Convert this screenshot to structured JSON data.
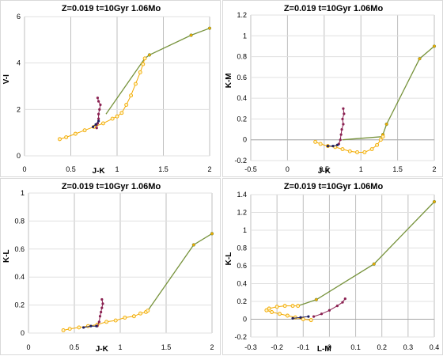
{
  "chart_data": [
    {
      "type": "scatter",
      "title": "Z=0.019  t=10Gyr  1.06Mo",
      "xlabel": "J-K",
      "ylabel": "V-I",
      "xlim": [
        0,
        2
      ],
      "ylim": [
        0,
        6
      ],
      "xticks": [
        "0",
        "0.5",
        "1",
        "1.5",
        "2"
      ],
      "yticks": [
        "0",
        "2",
        "4",
        "6"
      ],
      "grid": true,
      "series": [
        {
          "style": "line-markers",
          "color": "#77933c",
          "x": [
            1.3,
            1.35,
            1.8,
            2.0
          ],
          "y": [
            4.2,
            4.35,
            5.2,
            5.5
          ]
        },
        {
          "style": "line",
          "color": "#77933c",
          "x": [
            0.88,
            1.3
          ],
          "y": [
            1.8,
            4.2
          ]
        },
        {
          "style": "open-circles",
          "color": "#f2a900",
          "x": [
            0.38,
            0.45,
            0.55,
            0.65,
            0.75,
            0.85,
            0.95,
            1.0,
            1.05,
            1.1,
            1.15,
            1.2,
            1.25,
            1.28,
            1.3
          ],
          "y": [
            0.72,
            0.8,
            0.95,
            1.1,
            1.25,
            1.4,
            1.6,
            1.7,
            1.85,
            2.2,
            2.6,
            3.1,
            3.6,
            3.95,
            4.2
          ]
        },
        {
          "style": "markers",
          "color": "#8b2252",
          "x": [
            0.78,
            0.79,
            0.8,
            0.8,
            0.81,
            0.82,
            0.8,
            0.79
          ],
          "y": [
            1.2,
            1.4,
            1.6,
            1.8,
            2.0,
            2.2,
            2.35,
            2.5
          ]
        },
        {
          "style": "markers",
          "color": "#1f1f5e",
          "x": [
            0.74,
            0.77,
            0.8
          ],
          "y": [
            1.25,
            1.35,
            1.5
          ]
        }
      ]
    },
    {
      "type": "scatter",
      "title": "Z=0.019  t=10Gyr  1.06Mo",
      "xlabel": "J-K",
      "ylabel": "K-M",
      "xlim": [
        -0.5,
        2
      ],
      "ylim": [
        -0.2,
        1.2
      ],
      "xticks": [
        "-0.5",
        "0",
        "0.5",
        "1",
        "1.5",
        "2"
      ],
      "yticks": [
        "-0.2",
        "0",
        "0.2",
        "0.4",
        "0.6",
        "0.8",
        "1",
        "1.2"
      ],
      "grid": true,
      "series": [
        {
          "style": "line-markers",
          "color": "#77933c",
          "x": [
            1.3,
            1.35,
            1.8,
            2.0
          ],
          "y": [
            0.05,
            0.15,
            0.78,
            0.9
          ]
        },
        {
          "style": "line",
          "color": "#77933c",
          "x": [
            0.75,
            1.28
          ],
          "y": [
            0.0,
            0.03
          ]
        },
        {
          "style": "open-circles",
          "color": "#f2a900",
          "x": [
            0.38,
            0.45,
            0.55,
            0.65,
            0.75,
            0.85,
            0.95,
            1.05,
            1.15,
            1.22,
            1.27,
            1.3
          ],
          "y": [
            -0.02,
            -0.04,
            -0.06,
            -0.07,
            -0.09,
            -0.11,
            -0.12,
            -0.12,
            -0.09,
            -0.05,
            0.0,
            0.03
          ]
        },
        {
          "style": "markers",
          "color": "#8b2252",
          "x": [
            0.7,
            0.72,
            0.73,
            0.74,
            0.76,
            0.75,
            0.77,
            0.76
          ],
          "y": [
            -0.04,
            0.0,
            0.05,
            0.1,
            0.15,
            0.2,
            0.25,
            0.3
          ]
        },
        {
          "style": "markers",
          "color": "#1f1f5e",
          "x": [
            0.55,
            0.62,
            0.68
          ],
          "y": [
            -0.06,
            -0.06,
            -0.05
          ]
        }
      ]
    },
    {
      "type": "scatter",
      "title": "Z=0.019  t=10Gyr  1.06Mo",
      "xlabel": "J-K",
      "ylabel": "K-L",
      "xlim": [
        0,
        2
      ],
      "ylim": [
        0,
        1
      ],
      "xticks": [
        "0",
        "0.5",
        "1",
        "1.5",
        "2"
      ],
      "yticks": [
        "0",
        "0.2",
        "0.4",
        "0.6",
        "0.8",
        "1"
      ],
      "grid": true,
      "series": [
        {
          "style": "line-markers",
          "color": "#77933c",
          "x": [
            1.3,
            1.8,
            2.0
          ],
          "y": [
            0.16,
            0.63,
            0.71
          ]
        },
        {
          "style": "open-circles",
          "color": "#f2a900",
          "x": [
            0.38,
            0.45,
            0.55,
            0.65,
            0.75,
            0.85,
            0.95,
            1.05,
            1.15,
            1.22,
            1.28,
            1.3
          ],
          "y": [
            0.02,
            0.03,
            0.04,
            0.05,
            0.06,
            0.08,
            0.09,
            0.11,
            0.12,
            0.14,
            0.15,
            0.16
          ]
        },
        {
          "style": "markers",
          "color": "#8b2252",
          "x": [
            0.75,
            0.77,
            0.78,
            0.79,
            0.8,
            0.81,
            0.8
          ],
          "y": [
            0.05,
            0.08,
            0.12,
            0.15,
            0.18,
            0.21,
            0.24
          ]
        },
        {
          "style": "markers",
          "color": "#1f1f5e",
          "x": [
            0.6,
            0.68,
            0.74
          ],
          "y": [
            0.04,
            0.05,
            0.05
          ]
        }
      ]
    },
    {
      "type": "scatter",
      "title": "Z=0.019  t=10Gyr  1.06Mo",
      "xlabel": "L-M",
      "ylabel": "K-L",
      "xlim": [
        -0.3,
        0.4
      ],
      "ylim": [
        -0.2,
        1.4
      ],
      "xticks": [
        "-0.3",
        "-0.2",
        "-0.1",
        "0",
        "0.1",
        "0.2",
        "0.3",
        "0.4"
      ],
      "yticks": [
        "-0.2",
        "0",
        "0.2",
        "0.4",
        "0.6",
        "0.8",
        "1",
        "1.2",
        "1.4"
      ],
      "grid": true,
      "series": [
        {
          "style": "line-markers",
          "color": "#77933c",
          "x": [
            -0.12,
            -0.05,
            0.17,
            0.4
          ],
          "y": [
            0.15,
            0.22,
            0.62,
            1.32
          ]
        },
        {
          "style": "open-circles",
          "color": "#f2a900",
          "x": [
            -0.07,
            -0.1,
            -0.13,
            -0.16,
            -0.19,
            -0.22,
            -0.24,
            -0.23,
            -0.2,
            -0.17,
            -0.14,
            -0.12
          ],
          "y": [
            -0.01,
            0.0,
            0.02,
            0.04,
            0.06,
            0.08,
            0.1,
            0.12,
            0.14,
            0.15,
            0.15,
            0.15
          ]
        },
        {
          "style": "markers",
          "color": "#8b2252",
          "x": [
            -0.06,
            -0.03,
            0.0,
            0.03,
            0.05,
            0.06
          ],
          "y": [
            0.03,
            0.06,
            0.1,
            0.15,
            0.19,
            0.23
          ]
        },
        {
          "style": "markers",
          "color": "#1f1f5e",
          "x": [
            -0.14,
            -0.11,
            -0.08
          ],
          "y": [
            0.01,
            0.02,
            0.03
          ]
        }
      ]
    }
  ]
}
